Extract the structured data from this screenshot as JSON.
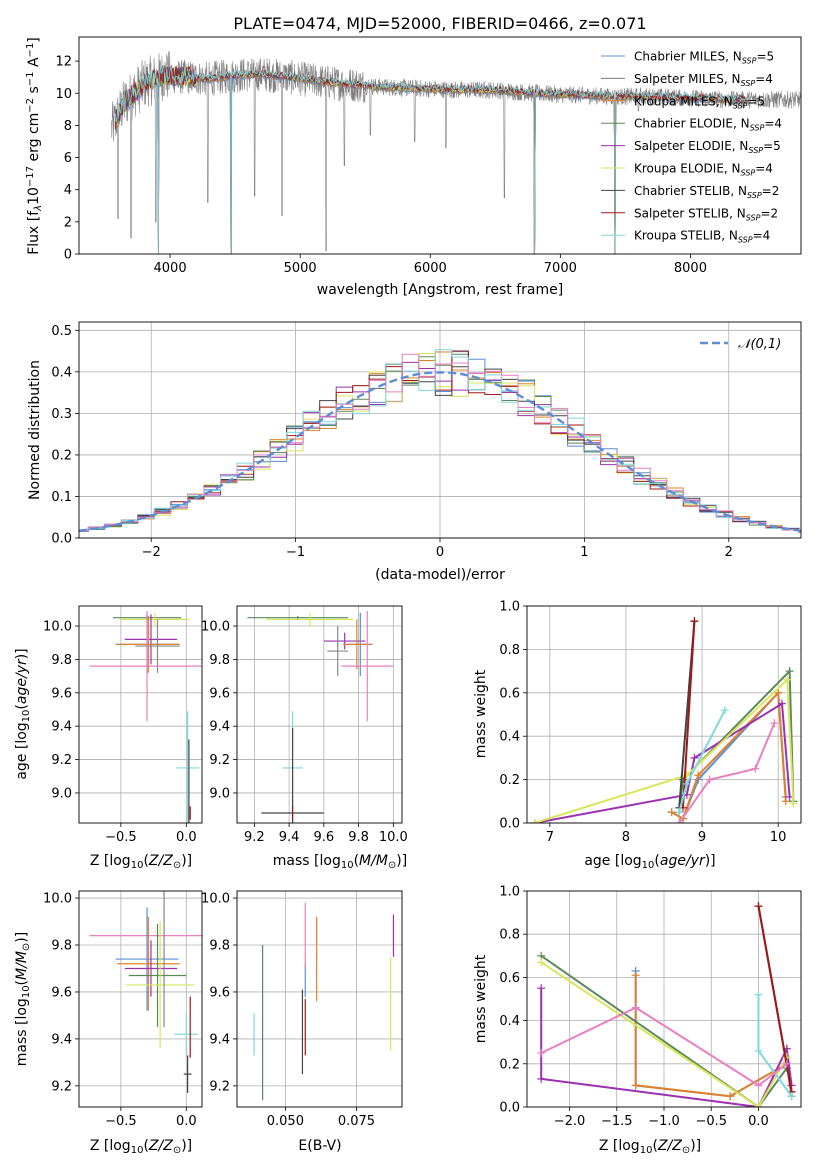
{
  "chart_data": [
    {
      "panel": "spectrum",
      "type": "line",
      "title": "PLATE=0474, MJD=52000, FIBERID=0466, z=0.071",
      "xlabel": "wavelength [Angstrom, rest frame]",
      "ylabel": "Flux [f_λ10^−17 erg cm^−2 s^−1 A^−1]",
      "xlim": [
        3300,
        8850
      ],
      "ylim": [
        0,
        13.5
      ],
      "xticks": [
        4000,
        5000,
        6000,
        7000,
        8000
      ],
      "yticks": [
        0,
        2,
        4,
        6,
        8,
        10,
        12
      ],
      "grid": false,
      "legend_position": "upper right",
      "data_color": "#808080",
      "legend": [
        {
          "name": "Chabrier MILES, N_SSP=5",
          "color": "#5b8ed6"
        },
        {
          "name": "Salpeter MILES, N_SSP=4",
          "color": "#7a7a7a"
        },
        {
          "name": "Kroupa MILES, N_SSP=5",
          "color": "#e0822a"
        },
        {
          "name": "Chabrier ELODIE, N_SSP=4",
          "color": "#5a8a5a"
        },
        {
          "name": "Salpeter ELODIE, N_SSP=5",
          "color": "#9b30b0"
        },
        {
          "name": "Kroupa ELODIE, N_SSP=4",
          "color": "#d8e65a"
        },
        {
          "name": "Chabrier STELIB, N_SSP=2",
          "color": "#444444"
        },
        {
          "name": "Salpeter STELIB, N_SSP=2",
          "color": "#a01818"
        },
        {
          "name": "Kroupa STELIB, N_SSP=4",
          "color": "#7fd8de"
        }
      ],
      "continuum": {
        "x": [
          3550,
          3650,
          3800,
          3950,
          4100,
          4300,
          4500,
          4700,
          5000,
          5300,
          5600,
          5900,
          6200,
          6500,
          6800,
          7100,
          7400,
          7700,
          8000,
          8300,
          8500,
          8800
        ],
        "y": [
          7.8,
          9.4,
          10.6,
          11.1,
          11.0,
          10.9,
          11.1,
          11.2,
          10.9,
          10.6,
          10.4,
          10.3,
          10.2,
          10.2,
          10.0,
          9.9,
          9.8,
          9.8,
          9.7,
          9.6,
          9.6,
          9.6
        ]
      },
      "absorption_spikes": [
        {
          "x": 3600,
          "y": 2.2
        },
        {
          "x": 3700,
          "y": 1.0
        },
        {
          "x": 3890,
          "y": 2.0
        },
        {
          "x": 4290,
          "y": 3.2
        },
        {
          "x": 4470,
          "y": 0
        },
        {
          "x": 4650,
          "y": 3.6
        },
        {
          "x": 4860,
          "y": 2.4
        },
        {
          "x": 5200,
          "y": 0.2
        },
        {
          "x": 5340,
          "y": 5.5
        },
        {
          "x": 5540,
          "y": 7.4
        },
        {
          "x": 5880,
          "y": 7.0
        },
        {
          "x": 6120,
          "y": 6.6
        },
        {
          "x": 6570,
          "y": 3.5
        },
        {
          "x": 6800,
          "y": 0
        },
        {
          "x": 7420,
          "y": 0
        },
        {
          "x": 7600,
          "y": 8.9
        }
      ],
      "model_dropouts": [
        {
          "x": 3910,
          "y": 0
        },
        {
          "x": 4470,
          "y": 0
        },
        {
          "x": 6800,
          "y": 0
        },
        {
          "x": 7420,
          "y": 0
        }
      ]
    },
    {
      "panel": "residual_histogram",
      "type": "histogram",
      "xlabel": "(data-model)/error",
      "ylabel": "Normed distribution",
      "xlim": [
        -2.5,
        2.5
      ],
      "ylim": [
        0,
        0.52
      ],
      "xticks": [
        -2,
        -1,
        0,
        1,
        2
      ],
      "yticks": [
        0.0,
        0.1,
        0.2,
        0.3,
        0.4,
        0.5
      ],
      "grid": true,
      "legend_position": "upper right",
      "reference_curve": {
        "name": "𝒩(0,1)",
        "color": "#5b8ed6",
        "style": "dashed"
      },
      "bins": 45,
      "series_colors": [
        "#5b8ed6",
        "#e0822a",
        "#5a8a5a",
        "#9b30b0",
        "#d8e65a",
        "#444444",
        "#a01818",
        "#7fd8de",
        "#e87fc0"
      ]
    },
    {
      "panel": "age_vs_Z",
      "type": "errorbar",
      "xlabel": "Z [log10(Z/Z⊙)]",
      "ylabel": "age [log10(age/yr)]",
      "xlim": [
        -0.82,
        0.12
      ],
      "ylim": [
        8.82,
        10.12
      ],
      "xticks": [
        -0.5,
        0.0
      ],
      "yticks": [
        9.0,
        9.2,
        9.4,
        9.6,
        9.8,
        10.0
      ],
      "points": [
        {
          "x": -0.3,
          "y": 10.05,
          "xerr": 0.26,
          "yerr": 0.02,
          "color": "#5a8a5a"
        },
        {
          "x": -0.24,
          "y": 10.04,
          "xerr": 0.26,
          "yerr": 0.04,
          "color": "#d8e65a"
        },
        {
          "x": -0.27,
          "y": 9.92,
          "xerr": 0.2,
          "yerr": 0.15,
          "color": "#9b30b0"
        },
        {
          "x": -0.3,
          "y": 9.89,
          "xerr": 0.24,
          "yerr": 0.18,
          "color": "#5b8ed6"
        },
        {
          "x": -0.29,
          "y": 9.89,
          "xerr": 0.24,
          "yerr": 0.17,
          "color": "#e0822a"
        },
        {
          "x": -0.22,
          "y": 9.88,
          "xerr": 0.17,
          "yerr": 0.16,
          "color": "#888888"
        },
        {
          "x": -0.3,
          "y": 9.76,
          "xerr": 0.44,
          "yerr": 0.33,
          "color": "#e87fc0"
        },
        {
          "x": 0.01,
          "y": 9.15,
          "xerr": 0.09,
          "yerr": 0.34,
          "color": "#7fd8de"
        },
        {
          "x": 0.02,
          "y": 8.87,
          "xerr": 0.0,
          "yerr": 0.45,
          "color": "#444444"
        },
        {
          "x": 0.03,
          "y": 8.88,
          "xerr": 0.0,
          "yerr": 0.04,
          "color": "#a01818"
        }
      ]
    },
    {
      "panel": "age_vs_mass",
      "type": "errorbar",
      "xlabel": "mass [log10(M/M⊙)]",
      "ylabel": "",
      "xlim": [
        9.1,
        10.05
      ],
      "ylim": [
        8.82,
        10.12
      ],
      "xticks": [
        9.2,
        9.4,
        9.6,
        9.8,
        10.0
      ],
      "yticks": [
        9.0,
        9.2,
        9.4,
        9.6,
        9.8,
        10.0
      ],
      "points": [
        {
          "x": 9.45,
          "y": 10.05,
          "xerr": 0.29,
          "yerr": 0.01,
          "color": "#5a8a5a"
        },
        {
          "x": 9.52,
          "y": 10.04,
          "xerr": 0.25,
          "yerr": 0.04,
          "color": "#d8e65a"
        },
        {
          "x": 9.72,
          "y": 9.91,
          "xerr": 0.12,
          "yerr": 0.05,
          "color": "#9b30b0"
        },
        {
          "x": 9.81,
          "y": 9.89,
          "xerr": 0.07,
          "yerr": 0.19,
          "color": "#5b8ed6"
        },
        {
          "x": 9.79,
          "y": 9.89,
          "xerr": 0.08,
          "yerr": 0.15,
          "color": "#e0822a"
        },
        {
          "x": 9.68,
          "y": 9.85,
          "xerr": 0.06,
          "yerr": 0.15,
          "color": "#888888"
        },
        {
          "x": 9.85,
          "y": 9.76,
          "xerr": 0.15,
          "yerr": 0.33,
          "color": "#e87fc0"
        },
        {
          "x": 9.42,
          "y": 9.15,
          "xerr": 0.06,
          "yerr": 0.34,
          "color": "#7fd8de"
        },
        {
          "x": 9.42,
          "y": 8.88,
          "xerr": 0.18,
          "yerr": 0.51,
          "color": "#444444"
        },
        {
          "x": 9.42,
          "y": 8.88,
          "xerr": 0.0,
          "yerr": 0.04,
          "color": "#a01818"
        }
      ]
    },
    {
      "panel": "mass_weight_vs_age",
      "type": "line",
      "xlabel": "age [log10(age/yr)]",
      "ylabel": "mass weight",
      "xlim": [
        6.7,
        10.3
      ],
      "ylim": [
        0,
        1
      ],
      "xticks": [
        7,
        8,
        9,
        10
      ],
      "yticks": [
        0.0,
        0.2,
        0.4,
        0.6,
        0.8,
        1.0
      ],
      "grid": true,
      "series": [
        {
          "color": "#5b8ed6",
          "points": [
            [
              8.6,
              0.05
            ],
            [
              8.75,
              0.02
            ],
            [
              8.95,
              0.2
            ],
            [
              10.0,
              0.6
            ],
            [
              10.1,
              0.12
            ]
          ]
        },
        {
          "color": "#e0822a",
          "points": [
            [
              8.6,
              0.05
            ],
            [
              8.75,
              0.02
            ],
            [
              8.95,
              0.22
            ],
            [
              10.0,
              0.6
            ],
            [
              10.1,
              0.1
            ]
          ]
        },
        {
          "color": "#5a8a5a",
          "points": [
            [
              8.7,
              0.05
            ],
            [
              8.75,
              0.2
            ],
            [
              10.15,
              0.7
            ],
            [
              10.2,
              0.1
            ]
          ]
        },
        {
          "color": "#9b30b0",
          "points": [
            [
              6.8,
              0.0
            ],
            [
              8.8,
              0.13
            ],
            [
              8.9,
              0.3
            ],
            [
              10.05,
              0.55
            ],
            [
              10.15,
              0.12
            ]
          ]
        },
        {
          "color": "#d8e65a",
          "points": [
            [
              6.8,
              0.0
            ],
            [
              8.8,
              0.22
            ],
            [
              10.12,
              0.66
            ],
            [
              10.2,
              0.09
            ]
          ]
        },
        {
          "color": "#444444",
          "points": [
            [
              8.7,
              0.07
            ],
            [
              8.9,
              0.93
            ]
          ]
        },
        {
          "color": "#a01818",
          "points": [
            [
              8.75,
              0.07
            ],
            [
              8.9,
              0.93
            ]
          ]
        },
        {
          "color": "#7fd8de",
          "points": [
            [
              8.7,
              0.05
            ],
            [
              8.8,
              0.18
            ],
            [
              9.3,
              0.52
            ]
          ]
        },
        {
          "color": "#e87fc0",
          "points": [
            [
              8.7,
              0.0
            ],
            [
              9.1,
              0.2
            ],
            [
              9.7,
              0.25
            ],
            [
              9.95,
              0.46
            ]
          ]
        }
      ]
    },
    {
      "panel": "mass_vs_Z",
      "type": "errorbar",
      "xlabel": "Z [log10(Z/Z⊙)]",
      "ylabel": "mass [log10(M/M⊙)]",
      "xlim": [
        -0.82,
        0.12
      ],
      "ylim": [
        9.11,
        10.03
      ],
      "xticks": [
        -0.5,
        0.0
      ],
      "yticks": [
        9.2,
        9.4,
        9.6,
        9.8,
        10.0
      ],
      "points": [
        {
          "x": -0.3,
          "y": 9.84,
          "xerr": 0.44,
          "yerr": 0.0,
          "color": "#e87fc0"
        },
        {
          "x": -0.3,
          "y": 9.74,
          "xerr": 0.24,
          "yerr": 0.22,
          "color": "#5b8ed6"
        },
        {
          "x": -0.29,
          "y": 9.72,
          "xerr": 0.24,
          "yerr": 0.2,
          "color": "#e0822a"
        },
        {
          "x": -0.27,
          "y": 9.7,
          "xerr": 0.2,
          "yerr": 0.12,
          "color": "#9b30b0"
        },
        {
          "x": -0.22,
          "y": 9.67,
          "xerr": 0.22,
          "yerr": 0.22,
          "color": "#5a8a5a"
        },
        {
          "x": -0.2,
          "y": 9.63,
          "xerr": 0.26,
          "yerr": 0.27,
          "color": "#d8e65a"
        },
        {
          "x": -0.17,
          "y": 9.75,
          "xerr": 0.0,
          "yerr": 0.3,
          "color": "#888888"
        },
        {
          "x": 0.0,
          "y": 9.42,
          "xerr": 0.09,
          "yerr": 0.09,
          "color": "#7fd8de"
        },
        {
          "x": 0.01,
          "y": 9.25,
          "xerr": 0.03,
          "yerr": 0.08,
          "color": "#444444"
        },
        {
          "x": 0.03,
          "y": 9.45,
          "xerr": 0.0,
          "yerr": 0.13,
          "color": "#a01818"
        }
      ]
    },
    {
      "panel": "mass_vs_EBV",
      "type": "errorbar",
      "xlabel": "E(B-V)",
      "ylabel": "",
      "xlim": [
        0.033,
        0.091
      ],
      "ylim": [
        9.11,
        10.03
      ],
      "xticks": [
        0.05,
        0.075
      ],
      "yticks": [
        9.2,
        9.4,
        9.6,
        9.8,
        10.0
      ],
      "points": [
        {
          "x": 0.039,
          "y": 9.42,
          "xerr": 0.0,
          "yerr": 0.09,
          "color": "#7fd8de"
        },
        {
          "x": 0.042,
          "y": 9.47,
          "xerr": 0.0,
          "yerr": 0.33,
          "color": "#5a8a5a"
        },
        {
          "x": 0.056,
          "y": 9.43,
          "xerr": 0.0,
          "yerr": 0.18,
          "color": "#444444"
        },
        {
          "x": 0.057,
          "y": 9.65,
          "xerr": 0.0,
          "yerr": 0.07,
          "color": "#5b8ed6"
        },
        {
          "x": 0.057,
          "y": 9.84,
          "xerr": 0.0,
          "yerr": 0.14,
          "color": "#e87fc0"
        },
        {
          "x": 0.057,
          "y": 9.45,
          "xerr": 0.0,
          "yerr": 0.12,
          "color": "#a01818"
        },
        {
          "x": 0.061,
          "y": 9.74,
          "xerr": 0.0,
          "yerr": 0.18,
          "color": "#e0822a"
        },
        {
          "x": 0.087,
          "y": 9.55,
          "xerr": 0.0,
          "yerr": 0.2,
          "color": "#d8e65a"
        },
        {
          "x": 0.088,
          "y": 9.84,
          "xerr": 0.0,
          "yerr": 0.09,
          "color": "#9b30b0"
        }
      ]
    },
    {
      "panel": "mass_weight_vs_Z",
      "type": "line",
      "xlabel": "Z [log10(Z/Z⊙)]",
      "ylabel": "mass weight",
      "xlim": [
        -2.45,
        0.45
      ],
      "ylim": [
        0,
        1
      ],
      "xticks": [
        -2.0,
        -1.5,
        -1.0,
        -0.5,
        0.0
      ],
      "yticks": [
        0.0,
        0.2,
        0.4,
        0.6,
        0.8,
        1.0
      ],
      "grid": true,
      "series": [
        {
          "color": "#5b8ed6",
          "points": [
            [
              -1.3,
              0.63
            ],
            [
              -1.3,
              0.1
            ],
            [
              -0.3,
              0.05
            ],
            [
              0.3,
              0.2
            ],
            [
              0.35,
              0.05
            ]
          ]
        },
        {
          "color": "#e0822a",
          "points": [
            [
              -1.3,
              0.61
            ],
            [
              -1.3,
              0.1
            ],
            [
              -0.3,
              0.05
            ],
            [
              0.3,
              0.2
            ],
            [
              0.35,
              0.05
            ]
          ]
        },
        {
          "color": "#5a8a5a",
          "points": [
            [
              -2.3,
              0.7
            ],
            [
              0.0,
              0.0
            ],
            [
              0.3,
              0.18
            ]
          ]
        },
        {
          "color": "#9b30b0",
          "points": [
            [
              -2.3,
              0.55
            ],
            [
              -2.3,
              0.13
            ],
            [
              0.0,
              0.0
            ],
            [
              0.3,
              0.27
            ],
            [
              0.35,
              0.1
            ]
          ]
        },
        {
          "color": "#d8e65a",
          "points": [
            [
              -2.3,
              0.67
            ],
            [
              0.0,
              0.0
            ],
            [
              0.3,
              0.23
            ]
          ]
        },
        {
          "color": "#444444",
          "points": [
            [
              0.0,
              0.93
            ],
            [
              0.35,
              0.07
            ]
          ]
        },
        {
          "color": "#a01818",
          "points": [
            [
              0.0,
              0.93
            ],
            [
              0.35,
              0.07
            ]
          ]
        },
        {
          "color": "#7fd8de",
          "points": [
            [
              0.0,
              0.52
            ],
            [
              0.0,
              0.26
            ],
            [
              0.35,
              0.05
            ]
          ]
        },
        {
          "color": "#e87fc0",
          "points": [
            [
              -2.3,
              0.25
            ],
            [
              -1.3,
              0.46
            ],
            [
              0.0,
              0.1
            ],
            [
              0.3,
              0.2
            ]
          ]
        }
      ]
    }
  ]
}
